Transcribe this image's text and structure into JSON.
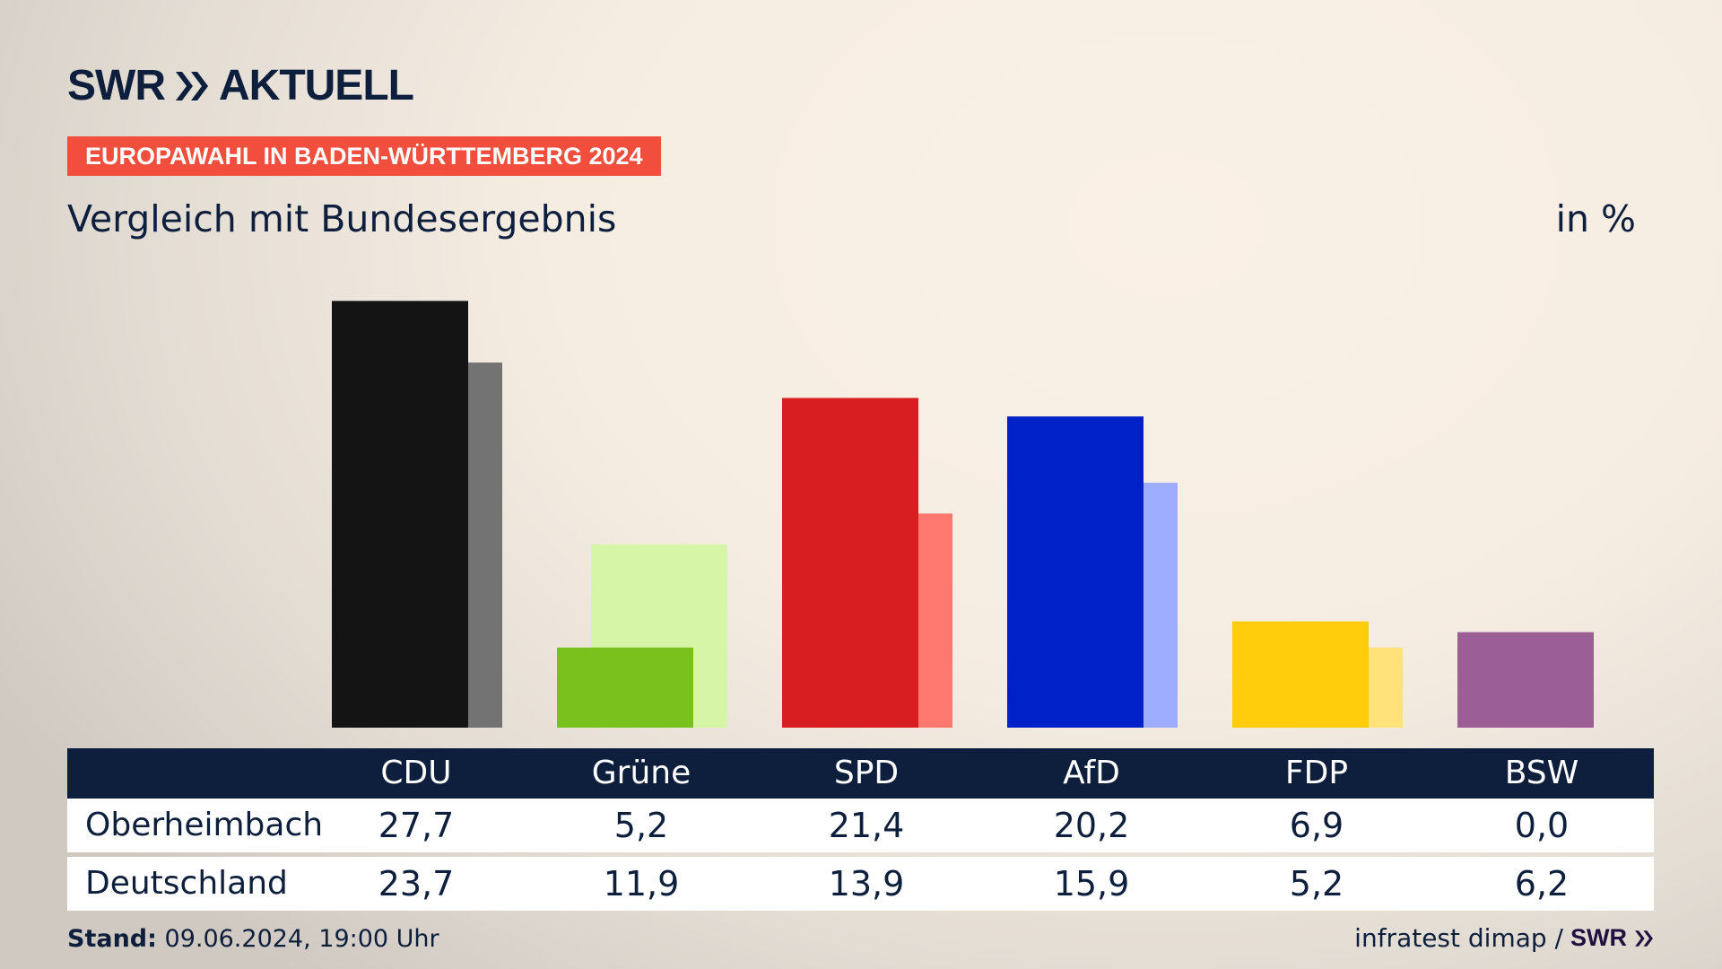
{
  "header": {
    "logo_text": "SWR AKTUELL",
    "logo_part1": "SWR",
    "logo_part2": "AKTUELL",
    "badge": "EUROPAWAHL IN BADEN-WÜRTTEMBERG 2024",
    "subtitle": "Vergleich mit Bundesergebnis",
    "unit": "in %",
    "badge_color": "#f24e3e",
    "text_color": "#0d1f3c"
  },
  "chart_data": {
    "type": "bar",
    "categories": [
      "CDU",
      "Grüne",
      "SPD",
      "AfD",
      "FDP",
      "BSW"
    ],
    "series": [
      {
        "name": "Oberheimbach",
        "values": [
          27.7,
          5.2,
          21.4,
          20.2,
          6.9,
          0.0
        ],
        "colors": [
          "#141414",
          "#79c11d",
          "#d81e20",
          "#0021c8",
          "#ffcd0b",
          "#9b5f96"
        ]
      },
      {
        "name": "Deutschland",
        "values": [
          23.7,
          11.9,
          13.9,
          15.9,
          5.2,
          6.2
        ],
        "colors": [
          "#737373",
          "#d6f5a6",
          "#ff7870",
          "#9eacff",
          "#ffe27a",
          "#9b5f96"
        ]
      }
    ],
    "ylim": [
      0,
      28
    ],
    "grid": false,
    "axis_visible": false
  },
  "table": {
    "headers": [
      "CDU",
      "Grüne",
      "SPD",
      "AfD",
      "FDP",
      "BSW"
    ],
    "rows": [
      {
        "label": "Oberheimbach",
        "values": [
          "27,7",
          "5,2",
          "21,4",
          "20,2",
          "6,9",
          "0,0"
        ]
      },
      {
        "label": "Deutschland",
        "values": [
          "23,7",
          "11,9",
          "13,9",
          "15,9",
          "5,2",
          "6,2"
        ]
      }
    ]
  },
  "footer": {
    "stand_label": "Stand:",
    "stand_value": "09.06.2024, 19:00 Uhr",
    "source": "infratest dimap /",
    "source_logo": "SWR"
  }
}
